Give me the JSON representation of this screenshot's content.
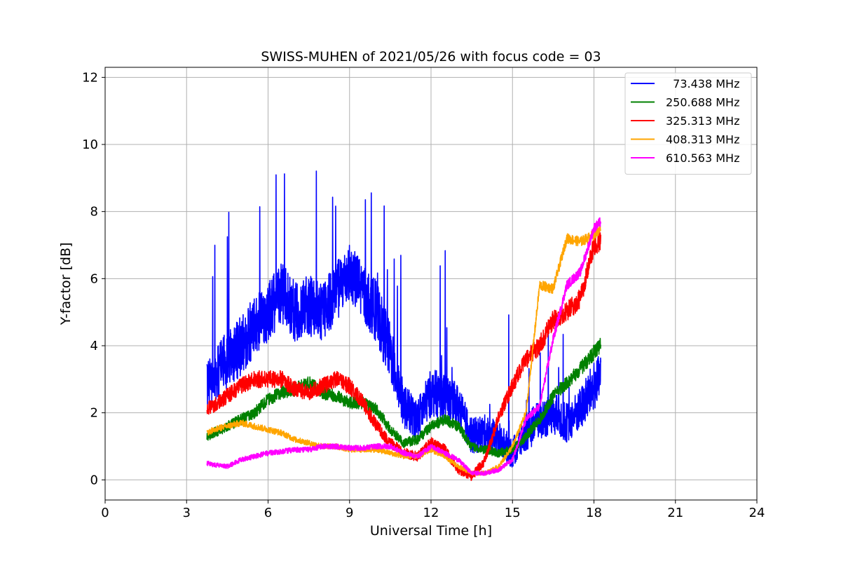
{
  "chart_data": {
    "type": "line",
    "title": "SWISS-MUHEN of 2021/05/26 with focus code = 03",
    "xlabel": "Universal Time [h]",
    "ylabel": "Y-factor [dB]",
    "xlim": [
      0,
      24
    ],
    "ylim": [
      -0.6,
      12.3
    ],
    "xticks": [
      0,
      3,
      6,
      9,
      12,
      15,
      18,
      21,
      24
    ],
    "yticks": [
      0,
      2,
      4,
      6,
      8,
      10,
      12
    ],
    "grid": true,
    "legend_position": "top-right",
    "series": [
      {
        "name": "  73.438 MHz",
        "color": "#0000ff",
        "noise": 0.9,
        "x": [
          3.75,
          4.0,
          4.5,
          5.0,
          5.5,
          6.0,
          6.5,
          7.0,
          7.5,
          8.0,
          8.5,
          9.0,
          9.5,
          10.0,
          10.5,
          11.0,
          11.5,
          12.0,
          12.5,
          13.0,
          13.5,
          14.0,
          14.5,
          15.0,
          15.5,
          16.0,
          16.5,
          17.0,
          17.5,
          18.0,
          18.25
        ],
        "y": [
          2.9,
          3.1,
          3.6,
          4.0,
          4.6,
          5.0,
          5.6,
          5.0,
          5.2,
          5.0,
          5.6,
          6.2,
          5.6,
          5.0,
          3.8,
          2.2,
          1.8,
          2.6,
          2.5,
          2.2,
          1.3,
          1.4,
          1.2,
          0.8,
          1.4,
          1.8,
          2.0,
          1.7,
          2.1,
          2.8,
          3.0
        ]
      },
      {
        "name": "250.688 MHz",
        "color": "#008000",
        "noise": 0.25,
        "x": [
          3.75,
          4.0,
          4.5,
          5.0,
          5.5,
          6.0,
          6.5,
          7.0,
          7.5,
          8.0,
          8.5,
          9.0,
          9.5,
          10.0,
          10.5,
          11.0,
          11.5,
          12.0,
          12.5,
          13.0,
          13.5,
          14.0,
          14.5,
          15.0,
          15.5,
          16.0,
          16.5,
          17.0,
          17.5,
          18.0,
          18.25
        ],
        "y": [
          1.3,
          1.4,
          1.6,
          1.8,
          2.0,
          2.4,
          2.6,
          2.7,
          2.9,
          2.6,
          2.5,
          2.3,
          2.3,
          2.1,
          1.5,
          1.1,
          1.2,
          1.6,
          1.8,
          1.6,
          1.0,
          0.9,
          0.8,
          0.9,
          1.3,
          1.8,
          2.5,
          2.9,
          3.3,
          3.8,
          4.0
        ]
      },
      {
        "name": "325.313 MHz",
        "color": "#ff0000",
        "noise": 0.3,
        "x": [
          3.75,
          4.0,
          4.5,
          5.0,
          5.5,
          6.0,
          6.5,
          7.0,
          7.5,
          8.0,
          8.5,
          9.0,
          9.5,
          10.0,
          10.5,
          11.0,
          11.5,
          12.0,
          12.5,
          13.0,
          13.5,
          14.0,
          14.5,
          15.0,
          15.5,
          16.0,
          16.5,
          17.0,
          17.5,
          18.0,
          18.25
        ],
        "y": [
          2.1,
          2.2,
          2.5,
          2.8,
          3.0,
          3.0,
          3.0,
          2.7,
          2.6,
          2.8,
          3.0,
          2.8,
          2.3,
          1.6,
          1.1,
          0.8,
          0.7,
          1.1,
          0.9,
          0.3,
          0.1,
          0.6,
          1.9,
          2.8,
          3.6,
          4.0,
          4.8,
          5.0,
          5.4,
          7.0,
          7.1
        ]
      },
      {
        "name": "408.313 MHz",
        "color": "#ffa500",
        "noise": 0.15,
        "x": [
          3.75,
          4.0,
          4.5,
          5.0,
          5.5,
          6.0,
          6.5,
          7.0,
          7.5,
          8.0,
          8.5,
          9.0,
          9.5,
          10.0,
          10.5,
          11.0,
          11.5,
          12.0,
          12.5,
          13.0,
          13.5,
          14.0,
          14.5,
          15.0,
          15.5,
          16.0,
          16.5,
          17.0,
          17.5,
          18.0,
          18.25
        ],
        "y": [
          1.4,
          1.5,
          1.6,
          1.7,
          1.6,
          1.5,
          1.4,
          1.2,
          1.1,
          1.0,
          1.0,
          0.9,
          0.9,
          0.9,
          0.8,
          0.7,
          0.7,
          0.9,
          0.7,
          0.4,
          0.2,
          0.2,
          0.4,
          1.0,
          2.0,
          5.8,
          5.7,
          7.2,
          7.1,
          7.3,
          7.5
        ]
      },
      {
        "name": "610.563 MHz",
        "color": "#ff00ff",
        "noise": 0.15,
        "x": [
          3.75,
          4.0,
          4.5,
          5.0,
          5.5,
          6.0,
          6.5,
          7.0,
          7.5,
          8.0,
          8.5,
          9.0,
          9.5,
          10.0,
          10.5,
          11.0,
          11.5,
          12.0,
          12.5,
          13.0,
          13.5,
          14.0,
          14.5,
          15.0,
          15.5,
          16.0,
          16.5,
          17.0,
          17.5,
          18.0,
          18.25
        ],
        "y": [
          0.5,
          0.45,
          0.4,
          0.6,
          0.7,
          0.8,
          0.85,
          0.9,
          0.9,
          1.0,
          1.0,
          0.95,
          0.95,
          1.0,
          1.0,
          0.8,
          0.7,
          1.0,
          0.8,
          0.6,
          0.2,
          0.2,
          0.3,
          0.6,
          1.8,
          2.2,
          4.2,
          5.8,
          6.2,
          7.5,
          7.7
        ]
      }
    ]
  }
}
